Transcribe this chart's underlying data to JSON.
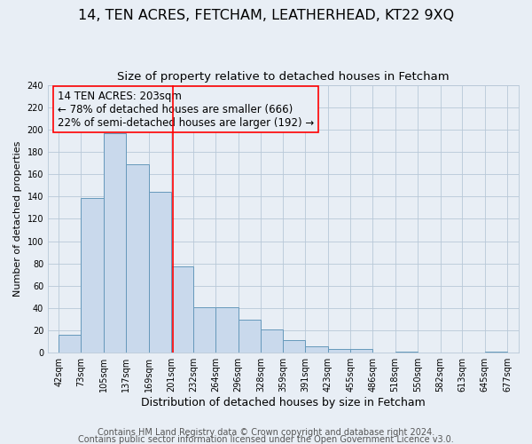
{
  "title": "14, TEN ACRES, FETCHAM, LEATHERHEAD, KT22 9XQ",
  "subtitle": "Size of property relative to detached houses in Fetcham",
  "xlabel": "Distribution of detached houses by size in Fetcham",
  "ylabel": "Number of detached properties",
  "bar_edges": [
    42,
    73,
    105,
    137,
    169,
    201,
    232,
    264,
    296,
    328,
    359,
    391,
    423,
    455,
    486,
    518,
    550,
    582,
    613,
    645,
    677
  ],
  "bar_heights": [
    16,
    139,
    197,
    169,
    144,
    77,
    41,
    41,
    30,
    21,
    11,
    6,
    3,
    3,
    0,
    1,
    0,
    0,
    0,
    1
  ],
  "bar_color": "#c9d9ec",
  "bar_edgecolor": "#6699bb",
  "grid_color": "#b8c8d8",
  "reference_line_x": 203,
  "reference_line_color": "red",
  "annotation_text": "14 TEN ACRES: 203sqm\n← 78% of detached houses are smaller (666)\n22% of semi-detached houses are larger (192) →",
  "annotation_box_edgecolor": "red",
  "annotation_fontsize": 8.5,
  "ylim": [
    0,
    240
  ],
  "tick_labels": [
    "42sqm",
    "73sqm",
    "105sqm",
    "137sqm",
    "169sqm",
    "201sqm",
    "232sqm",
    "264sqm",
    "296sqm",
    "328sqm",
    "359sqm",
    "391sqm",
    "423sqm",
    "455sqm",
    "486sqm",
    "518sqm",
    "550sqm",
    "582sqm",
    "613sqm",
    "645sqm",
    "677sqm"
  ],
  "footer_line1": "Contains HM Land Registry data © Crown copyright and database right 2024.",
  "footer_line2": "Contains public sector information licensed under the Open Government Licence v3.0.",
  "title_fontsize": 11.5,
  "subtitle_fontsize": 9.5,
  "xlabel_fontsize": 9,
  "ylabel_fontsize": 8,
  "footer_fontsize": 7,
  "tick_fontsize": 7,
  "bg_color": "#e8eef5"
}
